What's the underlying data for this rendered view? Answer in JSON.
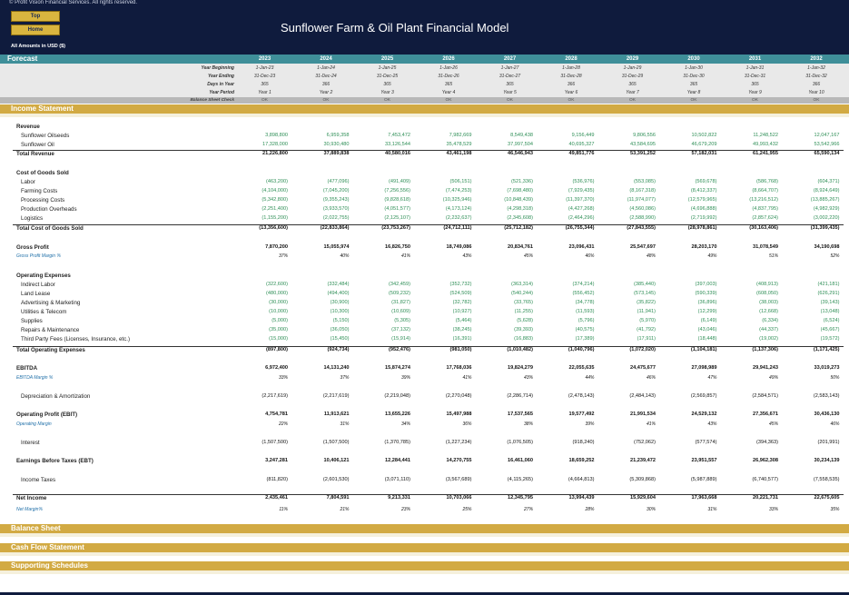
{
  "header": {
    "copyright": "© Profit Vision Financial Services. All rights reserved.",
    "top_button": "Top",
    "home_button": "Home",
    "title": "Sunflower Farm & Oil Plant Financial Model",
    "amounts_note": "All Amounts in  USD ($)"
  },
  "forecast": {
    "label": "Forecast",
    "years": [
      "2023",
      "2024",
      "2025",
      "2026",
      "2027",
      "2028",
      "2029",
      "2030",
      "2031",
      "2032"
    ],
    "meta": [
      {
        "label": "Year Beginning",
        "values": [
          "1-Jan-23",
          "1-Jan-24",
          "1-Jan-25",
          "1-Jan-26",
          "1-Jan-27",
          "1-Jan-28",
          "1-Jan-29",
          "1-Jan-30",
          "1-Jan-31",
          "1-Jan-32"
        ]
      },
      {
        "label": "Year Ending",
        "values": [
          "31-Dec-23",
          "31-Dec-24",
          "31-Dec-25",
          "31-Dec-26",
          "31-Dec-27",
          "31-Dec-28",
          "31-Dec-29",
          "31-Dec-30",
          "31-Dec-31",
          "31-Dec-32"
        ]
      },
      {
        "label": "Days in Year",
        "values": [
          "365",
          "366",
          "365",
          "365",
          "365",
          "366",
          "365",
          "365",
          "365",
          "366"
        ]
      },
      {
        "label": "Year Period",
        "values": [
          "Year 1",
          "Year 2",
          "Year 3",
          "Year 4",
          "Year 5",
          "Year 6",
          "Year 7",
          "Year 8",
          "Year 9",
          "Year 10"
        ]
      }
    ],
    "balance_check": {
      "label": "Balance Sheet Check",
      "values": [
        "OK",
        "OK",
        "OK",
        "OK",
        "OK",
        "OK",
        "OK",
        "OK",
        "OK",
        "OK"
      ]
    }
  },
  "sections": {
    "income": "Income Statement",
    "balance": "Balance Sheet",
    "cashflow": "Cash Flow Statement",
    "supporting": "Supporting Schedules"
  },
  "rows": [
    {
      "label": "Revenue",
      "type": "head"
    },
    {
      "label": "Sunflower Oilseeds",
      "type": "green",
      "values": [
        "3,898,800",
        "6,959,358",
        "7,453,472",
        "7,982,669",
        "8,549,438",
        "9,156,449",
        "9,806,556",
        "10,502,822",
        "11,248,522",
        "12,047,167"
      ]
    },
    {
      "label": "Sunflower Oil",
      "type": "green",
      "values": [
        "17,328,000",
        "30,930,480",
        "33,126,544",
        "35,478,529",
        "37,997,504",
        "40,695,327",
        "43,584,695",
        "46,679,209",
        "49,993,432",
        "53,542,966"
      ]
    },
    {
      "label": "Total Revenue",
      "type": "total",
      "values": [
        "21,226,800",
        "37,889,838",
        "40,580,016",
        "43,461,198",
        "46,546,943",
        "49,851,776",
        "53,391,252",
        "57,182,031",
        "61,241,955",
        "65,590,134"
      ]
    },
    {
      "label": "Cost of Goods Sold",
      "type": "head"
    },
    {
      "label": "Labor",
      "type": "green",
      "values": [
        "(463,200)",
        "(477,096)",
        "(491,409)",
        "(506,151)",
        "(521,336)",
        "(536,976)",
        "(553,085)",
        "(569,678)",
        "(586,768)",
        "(604,371)"
      ]
    },
    {
      "label": "Farming Costs",
      "type": "green",
      "values": [
        "(4,104,000)",
        "(7,045,200)",
        "(7,256,556)",
        "(7,474,253)",
        "(7,698,480)",
        "(7,929,435)",
        "(8,167,318)",
        "(8,412,337)",
        "(8,664,707)",
        "(8,924,649)"
      ]
    },
    {
      "label": "Processing Costs",
      "type": "green",
      "values": [
        "(5,342,800)",
        "(9,355,243)",
        "(9,828,618)",
        "(10,325,946)",
        "(10,848,439)",
        "(11,397,370)",
        "(11,974,077)",
        "(12,579,965)",
        "(13,216,512)",
        "(13,885,267)"
      ]
    },
    {
      "label": "Production Overheads",
      "type": "green",
      "values": [
        "(2,251,400)",
        "(3,933,570)",
        "(4,051,577)",
        "(4,173,124)",
        "(4,298,318)",
        "(4,427,268)",
        "(4,560,086)",
        "(4,696,888)",
        "(4,837,795)",
        "(4,982,929)"
      ]
    },
    {
      "label": "Logistics",
      "type": "green",
      "values": [
        "(1,155,200)",
        "(2,022,755)",
        "(2,125,107)",
        "(2,232,637)",
        "(2,345,608)",
        "(2,464,296)",
        "(2,588,990)",
        "(2,719,992)",
        "(2,857,624)",
        "(3,002,220)"
      ]
    },
    {
      "label": "Total Cost of Goods Sold",
      "type": "total",
      "values": [
        "(13,356,600)",
        "(22,833,864)",
        "(23,753,267)",
        "(24,712,111)",
        "(25,712,182)",
        "(26,755,344)",
        "(27,843,555)",
        "(28,978,861)",
        "(30,163,406)",
        "(31,399,435)"
      ]
    },
    {
      "label": "Gross Profit",
      "type": "bold",
      "values": [
        "7,870,200",
        "15,055,974",
        "16,826,750",
        "18,749,086",
        "20,834,761",
        "23,096,431",
        "25,547,697",
        "28,203,170",
        "31,078,549",
        "34,190,698"
      ]
    },
    {
      "label": "Gross Profit Margin %",
      "type": "margin",
      "values": [
        "37%",
        "40%",
        "41%",
        "43%",
        "45%",
        "46%",
        "48%",
        "49%",
        "51%",
        "52%"
      ]
    },
    {
      "label": "Operating Expenses",
      "type": "head"
    },
    {
      "label": "Indirect Labor",
      "type": "green",
      "values": [
        "(322,600)",
        "(332,484)",
        "(342,459)",
        "(352,732)",
        "(363,314)",
        "(374,214)",
        "(385,440)",
        "(397,003)",
        "(408,913)",
        "(421,181)"
      ]
    },
    {
      "label": "Land Lease",
      "type": "green",
      "values": [
        "(480,000)",
        "(494,400)",
        "(509,232)",
        "(524,509)",
        "(540,244)",
        "(556,452)",
        "(573,145)",
        "(590,339)",
        "(608,050)",
        "(626,291)"
      ]
    },
    {
      "label": "Advertising & Marketing",
      "type": "green",
      "values": [
        "(30,000)",
        "(30,900)",
        "(31,827)",
        "(32,782)",
        "(33,765)",
        "(34,778)",
        "(35,822)",
        "(36,896)",
        "(38,003)",
        "(39,143)"
      ]
    },
    {
      "label": "Utilities & Telecom",
      "type": "green",
      "values": [
        "(10,000)",
        "(10,300)",
        "(10,609)",
        "(10,927)",
        "(11,255)",
        "(11,593)",
        "(11,941)",
        "(12,299)",
        "(12,668)",
        "(13,048)"
      ]
    },
    {
      "label": "Supplies",
      "type": "green",
      "values": [
        "(5,000)",
        "(5,150)",
        "(5,305)",
        "(5,464)",
        "(5,628)",
        "(5,796)",
        "(5,970)",
        "(6,149)",
        "(6,334)",
        "(6,524)"
      ]
    },
    {
      "label": "Repairs & Maintenance",
      "type": "green",
      "values": [
        "(35,000)",
        "(36,050)",
        "(37,132)",
        "(38,245)",
        "(39,393)",
        "(40,575)",
        "(41,792)",
        "(43,046)",
        "(44,337)",
        "(45,667)"
      ]
    },
    {
      "label": "Third Party Fees (Licenses, Insurance, etc.)",
      "type": "green",
      "values": [
        "(15,000)",
        "(15,450)",
        "(15,914)",
        "(16,391)",
        "(16,883)",
        "(17,389)",
        "(17,911)",
        "(18,448)",
        "(19,002)",
        "(19,572)"
      ]
    },
    {
      "label": "Total Operating Expenses",
      "type": "total",
      "values": [
        "(897,800)",
        "(924,734)",
        "(952,476)",
        "(981,050)",
        "(1,010,482)",
        "(1,040,796)",
        "(1,072,020)",
        "(1,104,181)",
        "(1,137,306)",
        "(1,171,425)"
      ]
    },
    {
      "label": "EBITDA",
      "type": "bold",
      "values": [
        "6,972,400",
        "14,131,240",
        "15,874,274",
        "17,768,036",
        "19,824,279",
        "22,055,635",
        "24,475,677",
        "27,098,989",
        "29,941,243",
        "33,019,273"
      ]
    },
    {
      "label": "EBITDA Margin %",
      "type": "margin",
      "values": [
        "33%",
        "37%",
        "39%",
        "41%",
        "43%",
        "44%",
        "46%",
        "47%",
        "49%",
        "50%"
      ]
    },
    {
      "label": "Depreciation & Amortization",
      "type": "plain",
      "values": [
        "(2,217,619)",
        "(2,217,619)",
        "(2,219,048)",
        "(2,270,048)",
        "(2,286,714)",
        "(2,478,143)",
        "(2,484,143)",
        "(2,569,857)",
        "(2,584,571)",
        "(2,583,143)"
      ]
    },
    {
      "label": "Operating Profit (EBIT)",
      "type": "bold",
      "values": [
        "4,754,781",
        "11,913,621",
        "13,655,226",
        "15,497,988",
        "17,537,565",
        "19,577,492",
        "21,991,534",
        "24,529,132",
        "27,356,671",
        "30,436,130"
      ]
    },
    {
      "label": "Operating Margin",
      "type": "margin",
      "values": [
        "22%",
        "31%",
        "34%",
        "36%",
        "38%",
        "39%",
        "41%",
        "43%",
        "45%",
        "46%"
      ]
    },
    {
      "label": "Interest",
      "type": "plain",
      "values": [
        "(1,507,500)",
        "(1,507,500)",
        "(1,370,785)",
        "(1,227,234)",
        "(1,076,505)",
        "(918,240)",
        "(752,062)",
        "(577,574)",
        "(394,363)",
        "(201,991)"
      ]
    },
    {
      "label": "Earnings Before Taxes (EBT)",
      "type": "bold",
      "values": [
        "3,247,281",
        "10,406,121",
        "12,284,441",
        "14,270,755",
        "16,461,060",
        "18,659,252",
        "21,239,472",
        "23,951,557",
        "26,962,308",
        "30,234,139"
      ]
    },
    {
      "label": "Income Taxes",
      "type": "plain",
      "values": [
        "(811,820)",
        "(2,601,530)",
        "(3,071,110)",
        "(3,567,689)",
        "(4,115,265)",
        "(4,664,813)",
        "(5,309,868)",
        "(5,987,889)",
        "(6,740,577)",
        "(7,558,535)"
      ]
    },
    {
      "label": "Net Income",
      "type": "total",
      "values": [
        "2,435,461",
        "7,804,591",
        "9,213,331",
        "10,703,066",
        "12,345,795",
        "13,994,439",
        "15,929,604",
        "17,963,668",
        "20,221,731",
        "22,675,605"
      ]
    },
    {
      "label": "Net Margin%",
      "type": "margin",
      "values": [
        "11%",
        "21%",
        "23%",
        "25%",
        "27%",
        "28%",
        "30%",
        "31%",
        "33%",
        "35%"
      ]
    }
  ]
}
